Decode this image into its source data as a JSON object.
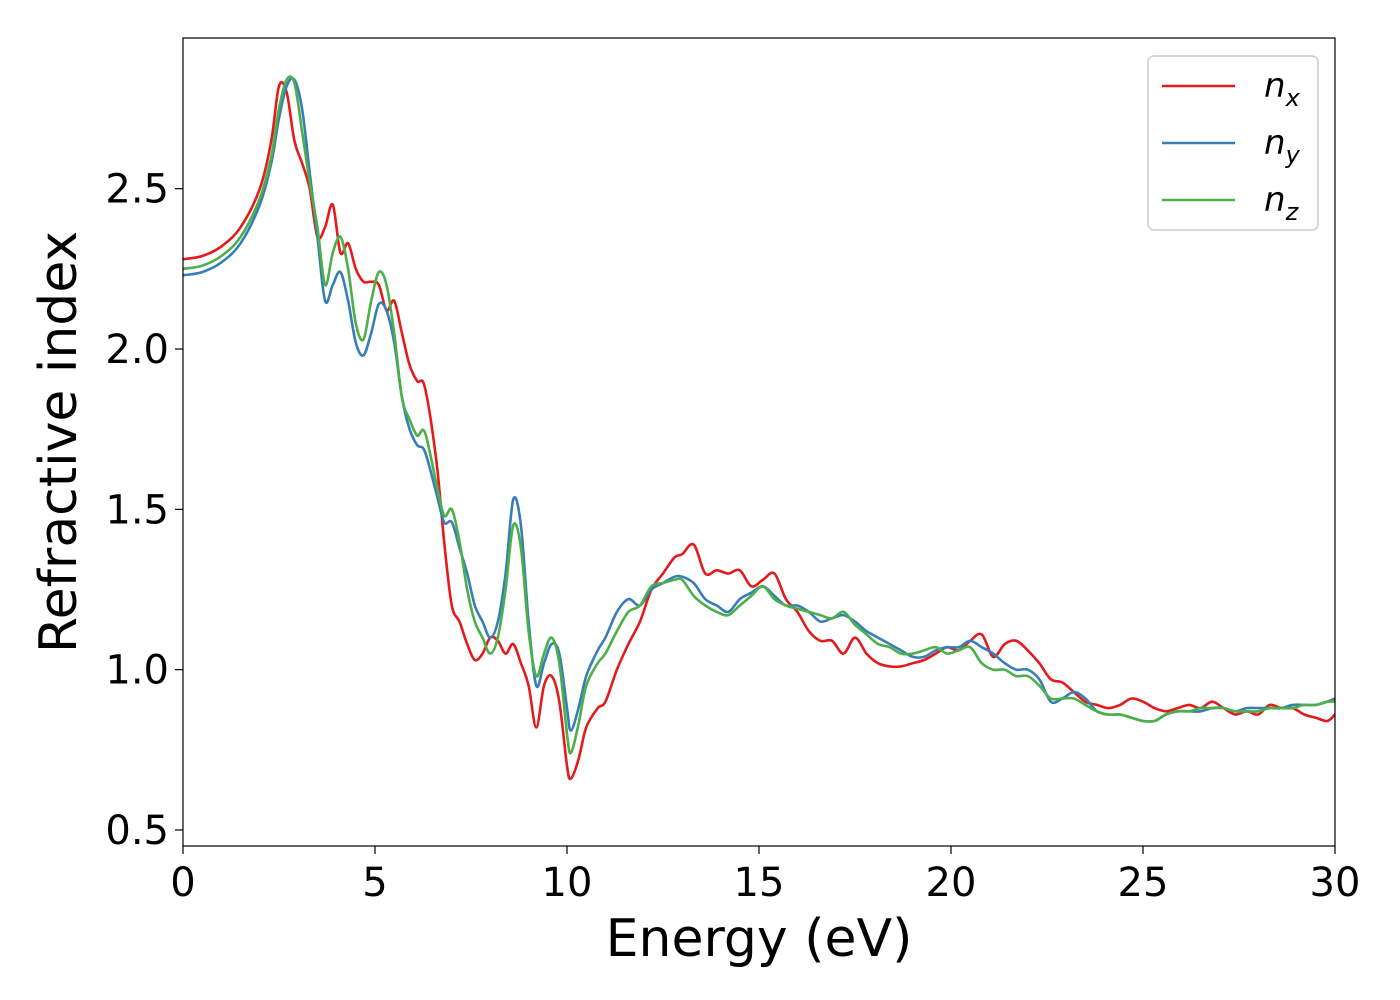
{
  "chart_data": {
    "type": "line",
    "title": "",
    "xlabel": "Energy (eV)",
    "ylabel": "Refractive index",
    "xlim": [
      0,
      30
    ],
    "ylim": [
      0.45,
      2.97
    ],
    "xticks": [
      "0",
      "5",
      "10",
      "15",
      "20",
      "25",
      "30"
    ],
    "yticks": [
      "0.5",
      "1.0",
      "1.5",
      "2.0",
      "2.5"
    ],
    "grid": false,
    "legend_position": "top-right",
    "series": [
      {
        "name": "n",
        "subscript": "x",
        "color": "#e41a1c",
        "x": [
          0,
          0.5,
          1,
          1.5,
          2,
          2.3,
          2.5,
          2.7,
          2.9,
          3.1,
          3.3,
          3.5,
          3.7,
          3.9,
          4.1,
          4.3,
          4.5,
          4.7,
          4.9,
          5.1,
          5.3,
          5.5,
          5.7,
          5.9,
          6.1,
          6.3,
          6.6,
          6.8,
          7.0,
          7.2,
          7.4,
          7.6,
          7.8,
          8.0,
          8.2,
          8.4,
          8.6,
          8.8,
          9.0,
          9.2,
          9.4,
          9.6,
          9.8,
          10.0,
          10.1,
          10.3,
          10.5,
          10.8,
          11.0,
          11.3,
          11.6,
          11.9,
          12.2,
          12.5,
          12.8,
          13.0,
          13.3,
          13.6,
          13.9,
          14.2,
          14.5,
          14.8,
          15.1,
          15.4,
          15.7,
          16.0,
          16.3,
          16.6,
          16.9,
          17.2,
          17.5,
          17.8,
          18.1,
          18.4,
          18.7,
          19.0,
          19.3,
          19.6,
          19.9,
          20.2,
          20.5,
          20.8,
          21.1,
          21.4,
          21.7,
          22.0,
          22.3,
          22.6,
          22.9,
          23.2,
          23.5,
          23.8,
          24.1,
          24.4,
          24.7,
          25.0,
          25.3,
          25.6,
          25.9,
          26.2,
          26.5,
          26.8,
          27.1,
          27.4,
          27.7,
          28.0,
          28.3,
          28.6,
          28.9,
          29.2,
          29.5,
          29.8,
          30.0
        ],
        "values": [
          2.28,
          2.29,
          2.32,
          2.38,
          2.5,
          2.65,
          2.82,
          2.8,
          2.65,
          2.58,
          2.5,
          2.35,
          2.38,
          2.45,
          2.3,
          2.33,
          2.25,
          2.21,
          2.21,
          2.2,
          2.12,
          2.15,
          2.05,
          1.95,
          1.9,
          1.88,
          1.65,
          1.4,
          1.2,
          1.15,
          1.08,
          1.03,
          1.05,
          1.1,
          1.09,
          1.05,
          1.08,
          1.02,
          0.95,
          0.82,
          0.95,
          0.98,
          0.9,
          0.7,
          0.66,
          0.72,
          0.82,
          0.88,
          0.9,
          1.0,
          1.08,
          1.15,
          1.25,
          1.3,
          1.35,
          1.36,
          1.39,
          1.3,
          1.31,
          1.3,
          1.31,
          1.26,
          1.28,
          1.3,
          1.22,
          1.18,
          1.12,
          1.09,
          1.09,
          1.05,
          1.1,
          1.05,
          1.02,
          1.01,
          1.01,
          1.02,
          1.03,
          1.05,
          1.07,
          1.06,
          1.09,
          1.11,
          1.04,
          1.08,
          1.09,
          1.06,
          1.02,
          0.97,
          0.96,
          0.93,
          0.9,
          0.89,
          0.88,
          0.89,
          0.91,
          0.9,
          0.88,
          0.87,
          0.88,
          0.89,
          0.88,
          0.9,
          0.88,
          0.86,
          0.87,
          0.86,
          0.89,
          0.88,
          0.88,
          0.86,
          0.85,
          0.84,
          0.86
        ]
      },
      {
        "name": "n",
        "subscript": "y",
        "color": "#377eb8",
        "x": [
          0,
          0.5,
          1,
          1.5,
          2,
          2.3,
          2.5,
          2.7,
          2.9,
          3.1,
          3.3,
          3.5,
          3.7,
          3.9,
          4.1,
          4.3,
          4.5,
          4.7,
          4.9,
          5.1,
          5.3,
          5.5,
          5.7,
          5.9,
          6.1,
          6.3,
          6.6,
          6.8,
          7.0,
          7.2,
          7.4,
          7.6,
          7.8,
          8.0,
          8.2,
          8.4,
          8.6,
          8.8,
          9.0,
          9.2,
          9.4,
          9.6,
          9.8,
          10.0,
          10.1,
          10.3,
          10.5,
          10.8,
          11.0,
          11.3,
          11.6,
          11.9,
          12.2,
          12.5,
          12.8,
          13.0,
          13.3,
          13.6,
          13.9,
          14.2,
          14.5,
          14.8,
          15.1,
          15.4,
          15.7,
          16.0,
          16.3,
          16.6,
          16.9,
          17.2,
          17.5,
          17.8,
          18.1,
          18.4,
          18.7,
          19.0,
          19.3,
          19.6,
          19.9,
          20.2,
          20.5,
          20.8,
          21.1,
          21.4,
          21.7,
          22.0,
          22.3,
          22.6,
          22.9,
          23.2,
          23.5,
          23.8,
          24.1,
          24.4,
          24.7,
          25.0,
          25.3,
          25.6,
          25.9,
          26.2,
          26.5,
          26.8,
          27.1,
          27.4,
          27.7,
          28.0,
          28.3,
          28.6,
          28.9,
          29.2,
          29.5,
          29.8,
          30.0
        ],
        "values": [
          2.23,
          2.24,
          2.27,
          2.33,
          2.45,
          2.58,
          2.72,
          2.82,
          2.84,
          2.75,
          2.55,
          2.35,
          2.15,
          2.2,
          2.24,
          2.15,
          2.02,
          1.98,
          2.05,
          2.14,
          2.12,
          2.02,
          1.85,
          1.75,
          1.7,
          1.68,
          1.55,
          1.46,
          1.46,
          1.38,
          1.3,
          1.2,
          1.15,
          1.1,
          1.15,
          1.3,
          1.53,
          1.45,
          1.15,
          0.95,
          1.02,
          1.08,
          1.05,
          0.88,
          0.81,
          0.88,
          0.98,
          1.06,
          1.1,
          1.18,
          1.22,
          1.2,
          1.25,
          1.27,
          1.29,
          1.29,
          1.27,
          1.22,
          1.2,
          1.18,
          1.22,
          1.24,
          1.26,
          1.23,
          1.2,
          1.2,
          1.18,
          1.15,
          1.16,
          1.17,
          1.15,
          1.12,
          1.1,
          1.08,
          1.06,
          1.04,
          1.04,
          1.06,
          1.07,
          1.07,
          1.09,
          1.07,
          1.05,
          1.02,
          1.0,
          1.0,
          0.97,
          0.9,
          0.91,
          0.93,
          0.91,
          0.87,
          0.86,
          0.86,
          0.85,
          0.84,
          0.84,
          0.86,
          0.87,
          0.87,
          0.87,
          0.88,
          0.88,
          0.87,
          0.88,
          0.88,
          0.88,
          0.88,
          0.89,
          0.89,
          0.89,
          0.9,
          0.91
        ]
      },
      {
        "name": "n",
        "subscript": "z",
        "color": "#4daf4a",
        "x": [
          0,
          0.5,
          1,
          1.5,
          2,
          2.3,
          2.5,
          2.7,
          2.9,
          3.1,
          3.3,
          3.5,
          3.7,
          3.9,
          4.1,
          4.3,
          4.5,
          4.7,
          4.9,
          5.1,
          5.3,
          5.5,
          5.7,
          5.9,
          6.1,
          6.3,
          6.6,
          6.8,
          7.0,
          7.2,
          7.4,
          7.6,
          7.8,
          8.0,
          8.2,
          8.4,
          8.6,
          8.8,
          9.0,
          9.2,
          9.4,
          9.6,
          9.8,
          10.0,
          10.1,
          10.3,
          10.5,
          10.8,
          11.0,
          11.3,
          11.6,
          11.9,
          12.2,
          12.5,
          12.8,
          13.0,
          13.3,
          13.6,
          13.9,
          14.2,
          14.5,
          14.8,
          15.1,
          15.4,
          15.7,
          16.0,
          16.3,
          16.6,
          16.9,
          17.2,
          17.5,
          17.8,
          18.1,
          18.4,
          18.7,
          19.0,
          19.3,
          19.6,
          19.9,
          20.2,
          20.5,
          20.8,
          21.1,
          21.4,
          21.7,
          22.0,
          22.3,
          22.6,
          22.9,
          23.2,
          23.5,
          23.8,
          24.1,
          24.4,
          24.7,
          25.0,
          25.3,
          25.6,
          25.9,
          26.2,
          26.5,
          26.8,
          27.1,
          27.4,
          27.7,
          28.0,
          28.3,
          28.6,
          28.9,
          29.2,
          29.5,
          29.8,
          30.0
        ],
        "values": [
          2.25,
          2.26,
          2.29,
          2.35,
          2.47,
          2.6,
          2.75,
          2.84,
          2.83,
          2.68,
          2.52,
          2.38,
          2.2,
          2.3,
          2.35,
          2.25,
          2.08,
          2.03,
          2.15,
          2.24,
          2.2,
          2.05,
          1.85,
          1.78,
          1.73,
          1.74,
          1.58,
          1.48,
          1.5,
          1.4,
          1.25,
          1.15,
          1.1,
          1.05,
          1.1,
          1.25,
          1.45,
          1.38,
          1.12,
          0.98,
          1.05,
          1.1,
          1.02,
          0.8,
          0.74,
          0.83,
          0.95,
          1.02,
          1.05,
          1.12,
          1.18,
          1.2,
          1.26,
          1.27,
          1.28,
          1.28,
          1.23,
          1.2,
          1.18,
          1.17,
          1.2,
          1.23,
          1.26,
          1.22,
          1.2,
          1.19,
          1.18,
          1.17,
          1.16,
          1.18,
          1.14,
          1.11,
          1.08,
          1.07,
          1.05,
          1.05,
          1.06,
          1.07,
          1.05,
          1.06,
          1.07,
          1.02,
          1.0,
          1.0,
          0.98,
          0.98,
          0.95,
          0.91,
          0.91,
          0.91,
          0.89,
          0.87,
          0.86,
          0.86,
          0.85,
          0.84,
          0.84,
          0.86,
          0.87,
          0.87,
          0.88,
          0.88,
          0.88,
          0.87,
          0.87,
          0.87,
          0.88,
          0.88,
          0.88,
          0.89,
          0.89,
          0.9,
          0.9
        ]
      }
    ]
  }
}
